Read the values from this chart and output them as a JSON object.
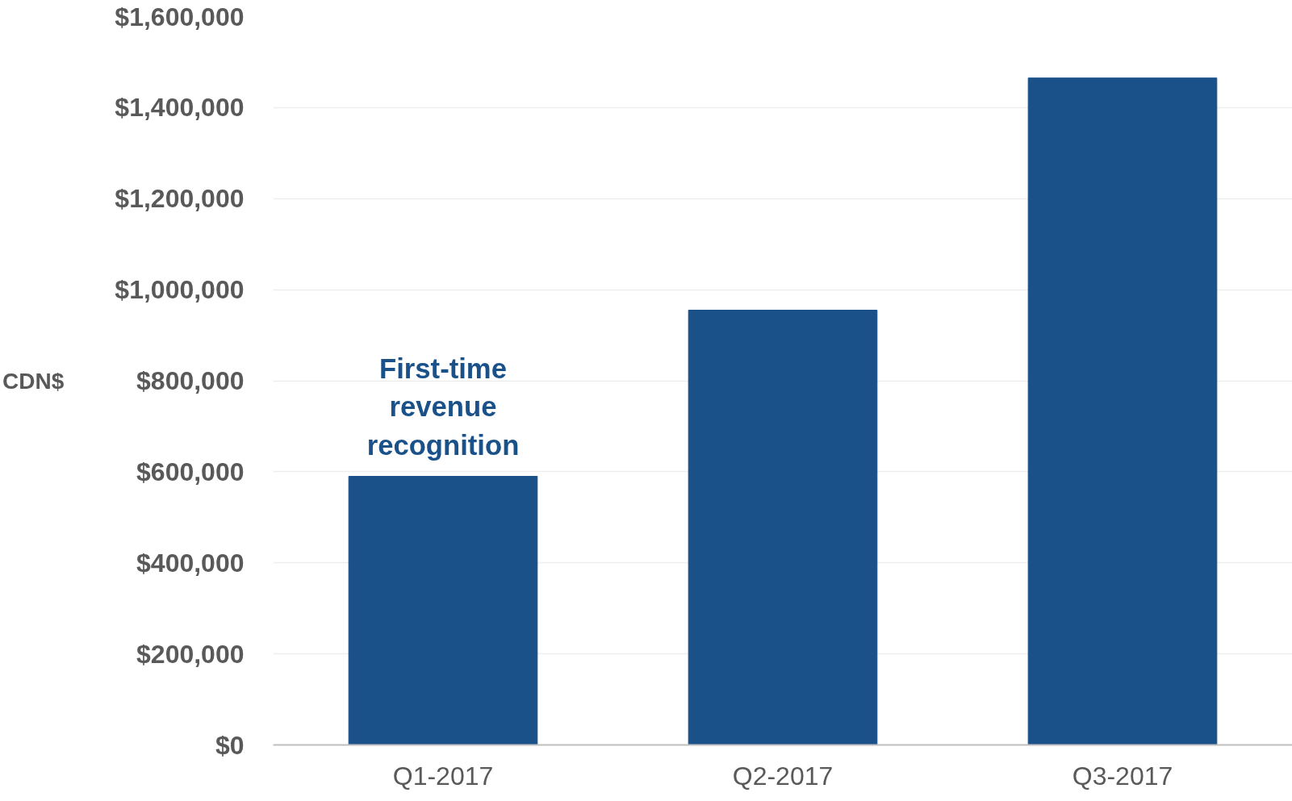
{
  "chart_data": {
    "type": "bar",
    "ylabel": "CDN$",
    "categories": [
      "Q1-2017",
      "Q2-2017",
      "Q3-2017"
    ],
    "values": [
      590000,
      955000,
      1465000
    ],
    "color": "#1a5189",
    "ylim": [
      0,
      1600000
    ],
    "yticks": [
      {
        "value": 0,
        "label": "$0"
      },
      {
        "value": 200000,
        "label": "$200,000"
      },
      {
        "value": 400000,
        "label": "$400,000"
      },
      {
        "value": 600000,
        "label": "$600,000"
      },
      {
        "value": 800000,
        "label": "$800,000"
      },
      {
        "value": 1000000,
        "label": "$1,000,000"
      },
      {
        "value": 1200000,
        "label": "$1,200,000"
      },
      {
        "value": 1400000,
        "label": "$1,400,000"
      },
      {
        "value": 1600000,
        "label": "$1,600,000"
      }
    ],
    "grid": "y",
    "annotations": [
      {
        "text": "First-time\nrevenue\nrecognition",
        "x": "Q1-2017",
        "y": 590000
      }
    ]
  }
}
